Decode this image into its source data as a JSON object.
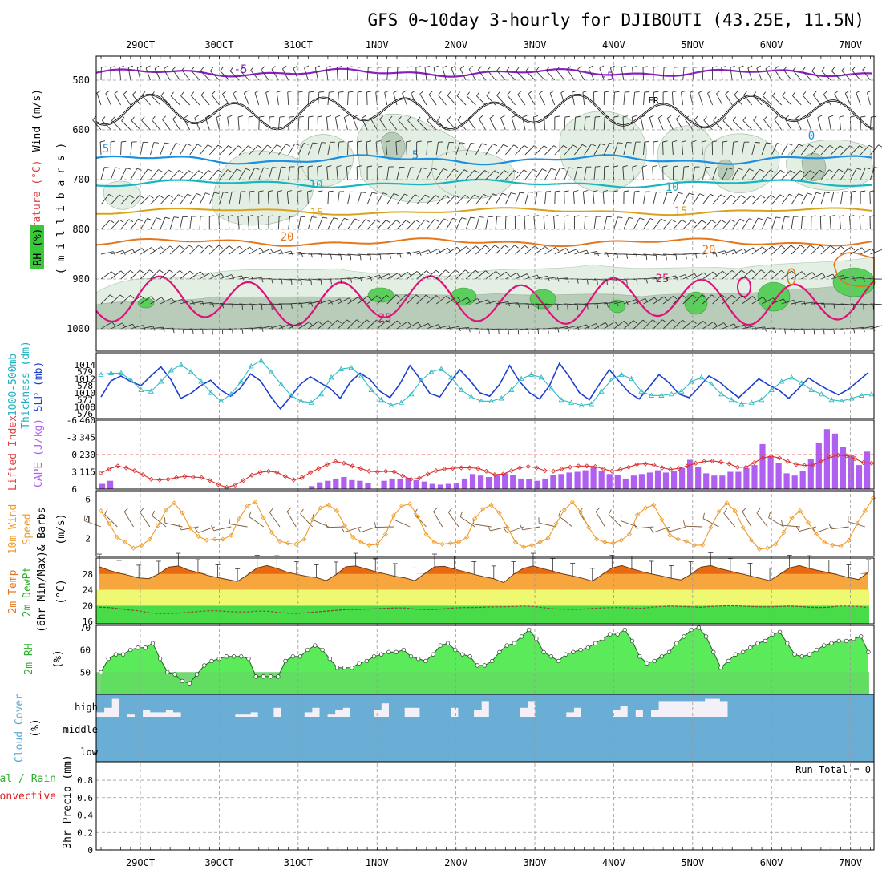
{
  "title": "GFS 0~10day 3-hourly for DJIBOUTI (43.25E, 11.5N)",
  "colors": {
    "grid": "#9a9a9a",
    "purple": "#8a1fc0",
    "black": "#000000",
    "blue_t": "#1c8fe0",
    "cyan_t": "#19b6c0",
    "yellow_t": "#d9a21c",
    "orange_t": "#e6761c",
    "magenta_t": "#e0107a",
    "rh_light": "#e3efe3",
    "rh_mid": "#b9cbb9",
    "rh_green": "#5bcf5b",
    "slp": "#1c3fd0",
    "thick": "#33bcc6",
    "cape": "#b060f0",
    "li": "#d83030",
    "wind10": "#f09a28",
    "barb": "#7a5a3a",
    "temp": "#e86a10",
    "temp_fill2": "#f6a63c",
    "temp_yel": "#eef870",
    "dew": "#48dc48",
    "rh2m": "#3de63d",
    "rh2m_low": "#78d878",
    "cloud": "#6aaed6",
    "cloud_bg": "#f4f0f8"
  },
  "panels": {
    "upper": {
      "ylabel_wind": "Wind (m/s)",
      "ylabel_temp": "Temperature (°C)",
      "ylabel_rh": "RH (%)",
      "ylabel_mb": "( m i l l i b a r s )",
      "pressure_ticks": [
        "500",
        "600",
        "700",
        "800",
        "900",
        "1000"
      ],
      "fr_label": "FR"
    },
    "slp": {
      "ylabel1": "1000-500mb",
      "ylabel2": "Thickness (dm)",
      "ylabel3": "SLP (mb)"
    },
    "cape": {
      "ylabel1": "Lifted Index",
      "ylabel2": "CAPE (J/kg)"
    },
    "wind": {
      "ylabel1": "10m Wind",
      "ylabel2": "Speed",
      "ylabel3": "& Barbs",
      "ylabel4": "(m/s)"
    },
    "temp": {
      "ylabel1": "2m Temp",
      "ylabel2": "2m DewPt",
      "ylabel3": "(6hr Min/Max)",
      "ylabel4": "(°C)"
    },
    "rh": {
      "ylabel1": "2m RH",
      "ylabel2": "(%)"
    },
    "cloud": {
      "ylabel1": "Cloud Cover",
      "ylabel2": "(%)",
      "levels": [
        "high",
        "middle",
        "low"
      ]
    },
    "precip": {
      "ylabel1": "Total / Rain",
      "ylabel2": "Convective",
      "ylabel3": "3hr Precip (mm)",
      "run_total": "Run Total = 0"
    }
  },
  "chart_data": {
    "type": "meteogram",
    "x_dates": [
      "29OCT",
      "30OCT",
      "31OCT",
      "1NOV",
      "2NOV",
      "3NOV",
      "4NOV",
      "5NOV",
      "6NOV",
      "7NOV"
    ],
    "x_range_days": [
      0.0,
      9.75
    ],
    "contours": [
      {
        "label": "-5",
        "value": -5,
        "color": "purple",
        "pressure_mean": 482
      },
      {
        "label": "FR",
        "value": 0,
        "color": "black",
        "pressure_mean": 570
      },
      {
        "label": "0",
        "value": 0,
        "color": "blue_t",
        "pressure_mean": 655
      },
      {
        "label": "5",
        "value": 5,
        "color": "blue_t",
        "pressure_mean": 660
      },
      {
        "label": "10",
        "value": 10,
        "color": "cyan_t",
        "pressure_mean": 706
      },
      {
        "label": "15",
        "value": 15,
        "color": "yellow_t",
        "pressure_mean": 762
      },
      {
        "label": "20",
        "value": 20,
        "color": "orange_t",
        "pressure_mean": 822
      },
      {
        "label": "25",
        "value": 25,
        "color": "magenta_t",
        "pressure_mean": 930
      }
    ],
    "slp": {
      "ylabel_left_ticks": [
        576,
        577,
        578,
        579
      ],
      "ylabel_right_ticks": [
        1008,
        1010,
        1012,
        1014
      ],
      "slp_mb": [
        1009.4,
        1011.7,
        1012.4,
        1011.6,
        1011.0,
        1012.4,
        1013.7,
        1011.9,
        1009.2,
        1009.9,
        1011.0,
        1011.8,
        1010.4,
        1009.5,
        1010.7,
        1012.7,
        1011.7,
        1009.5,
        1007.7,
        1009.4,
        1011.2,
        1012.3,
        1011.4,
        1010.6,
        1009.2,
        1011.5,
        1012.8,
        1011.9,
        1010.2,
        1009.3,
        1011.3,
        1013.9,
        1012.0,
        1009.9,
        1009.4,
        1011.5,
        1013.3,
        1011.8,
        1010.0,
        1009.5,
        1011.2,
        1013.9,
        1011.6,
        1010.0,
        1009.1,
        1011.0,
        1014.2,
        1012.3,
        1010.0,
        1009.0,
        1011.2,
        1013.3,
        1011.6,
        1010.0,
        1009.1,
        1010.8,
        1012.6,
        1011.4,
        1009.8,
        1009.3,
        1010.8,
        1012.4,
        1011.6,
        1010.4,
        1009.3,
        1010.6,
        1012.0,
        1011.1,
        1010.4,
        1009.2,
        1010.6,
        1012.1,
        1011.2,
        1010.4,
        1009.7,
        1010.5,
        1011.7,
        1012.9
      ],
      "thickness_dm": [
        578.8,
        578.9,
        578.9,
        578.4,
        577.7,
        577.6,
        578.3,
        579.1,
        579.5,
        579.0,
        578.3,
        577.5,
        576.9,
        577.4,
        578.3,
        579.4,
        579.8,
        579.0,
        578.1,
        577.3,
        576.9,
        576.8,
        577.4,
        578.6,
        579.2,
        579.3,
        578.7,
        577.7,
        577.0,
        576.6,
        576.8,
        577.4,
        578.4,
        579.0,
        579.2,
        578.6,
        577.7,
        577.2,
        576.9,
        576.9,
        577.1,
        577.7,
        578.5,
        578.8,
        578.6,
        577.8,
        577.0,
        576.8,
        576.6,
        576.7,
        577.6,
        578.4,
        578.8,
        578.5,
        577.6,
        577.3,
        577.3,
        577.4,
        577.6,
        578.3,
        578.6,
        578.1,
        577.4,
        577.0,
        576.7,
        576.8,
        577.0,
        577.7,
        578.3,
        578.6,
        578.2,
        577.7,
        577.4,
        577.0,
        576.9,
        577.1,
        577.3,
        577.4
      ]
    },
    "cape": {
      "cape_ticks": [
        115,
        230,
        345,
        460
      ],
      "li_ticks": [
        -6,
        -3,
        0,
        3,
        6
      ],
      "cape_jkg": [
        35,
        55,
        0,
        0,
        0,
        0,
        0,
        0,
        0,
        0,
        0,
        0,
        0,
        0,
        0,
        0,
        0,
        0,
        0,
        0,
        0,
        0,
        0,
        0,
        0,
        0,
        20,
        45,
        55,
        70,
        80,
        60,
        55,
        40,
        0,
        55,
        70,
        70,
        75,
        60,
        50,
        35,
        30,
        35,
        40,
        70,
        100,
        90,
        80,
        100,
        105,
        95,
        70,
        65,
        55,
        70,
        95,
        100,
        110,
        115,
        125,
        145,
        120,
        100,
        95,
        70,
        90,
        100,
        110,
        125,
        110,
        120,
        140,
        195,
        150,
        105,
        90,
        90,
        115,
        115,
        140,
        160,
        300,
        220,
        175,
        105,
        90,
        120,
        200,
        310,
        400,
        370,
        280,
        230,
        160,
        250
      ],
      "li": [
        3.2,
        2.5,
        2.0,
        2.3,
        2.8,
        3.5,
        4.3,
        4.4,
        4.3,
        4.0,
        3.8,
        3.9,
        4.0,
        4.5,
        5.2,
        5.7,
        5.3,
        4.5,
        3.6,
        3.1,
        2.9,
        3.1,
        3.8,
        4.4,
        4.0,
        3.1,
        2.4,
        1.7,
        1.2,
        1.5,
        2.0,
        2.4,
        2.9,
        3.0,
        2.9,
        3.0,
        3.7,
        4.3,
        4.1,
        3.4,
        2.8,
        2.5,
        2.4,
        2.3,
        2.3,
        2.4,
        2.9,
        3.5,
        3.4,
        2.8,
        2.3,
        2.1,
        2.3,
        2.8,
        2.9,
        2.5,
        2.2,
        2.0,
        2.0,
        2.1,
        2.5,
        2.9,
        2.6,
        2.2,
        1.7,
        1.6,
        1.8,
        2.3,
        2.6,
        2.4,
        2.0,
        1.5,
        1.2,
        1.1,
        1.3,
        1.6,
        2.2,
        2.2,
        1.4,
        0.6,
        0.3,
        0.6,
        1.2,
        1.7,
        1.9,
        1.8,
        1.2,
        0.5,
        0.1,
        0.2,
        0.7,
        1.4,
        1.5
      ]
    },
    "wind10m": {
      "yticks": [
        2,
        4,
        6
      ],
      "speed_ms": [
        4.8,
        3.5,
        2.1,
        1.6,
        1.0,
        1.3,
        1.9,
        3.3,
        4.9,
        5.6,
        4.6,
        3.0,
        2.2,
        1.8,
        1.9,
        1.9,
        2.3,
        4.0,
        5.3,
        5.7,
        4.1,
        2.6,
        1.7,
        1.5,
        1.4,
        1.9,
        3.9,
        5.1,
        5.4,
        4.8,
        3.3,
        2.1,
        1.6,
        1.3,
        1.4,
        2.4,
        4.3,
        5.3,
        5.5,
        4.2,
        2.4,
        1.6,
        1.4,
        1.5,
        1.6,
        2.1,
        4.0,
        5.0,
        5.4,
        4.6,
        3.1,
        1.6,
        1.1,
        1.3,
        1.6,
        2.0,
        3.5,
        4.9,
        5.7,
        4.7,
        3.1,
        1.9,
        1.6,
        1.5,
        1.8,
        2.4,
        4.4,
        5.1,
        5.4,
        3.9,
        2.3,
        1.9,
        1.7,
        1.3,
        1.3,
        3.1,
        4.7,
        5.6,
        4.8,
        3.1,
        1.8,
        0.9,
        1.0,
        1.4,
        2.6,
        4.1,
        4.8,
        3.6,
        2.4,
        1.6,
        1.3,
        1.2,
        1.8,
        3.5,
        4.8,
        6.1
      ]
    },
    "temp2m": {
      "yticks": [
        16,
        20,
        24,
        28
      ],
      "temp_c": [
        29.8,
        28.9,
        28.2,
        27.6,
        27.0,
        26.8,
        28.0,
        29.7,
        30.0,
        29.0,
        28.4,
        27.6,
        27.1,
        26.6,
        26.1,
        27.7,
        29.5,
        30.1,
        29.4,
        28.5,
        27.9,
        27.4,
        27.1,
        26.3,
        27.8,
        29.8,
        30.0,
        29.3,
        28.6,
        28.0,
        27.4,
        27.0,
        26.3,
        28.1,
        29.8,
        29.9,
        29.2,
        28.6,
        27.9,
        27.3,
        26.8,
        25.8,
        27.9,
        29.4,
        30.0,
        29.3,
        28.7,
        28.0,
        27.5,
        26.9,
        26.2,
        27.8,
        29.5,
        30.1,
        29.3,
        28.6,
        28.0,
        27.5,
        26.9,
        26.5,
        27.9,
        29.7,
        30.1,
        29.3,
        28.7,
        28.1,
        27.5,
        26.9,
        26.3,
        27.9,
        29.5,
        30.1,
        29.4,
        28.8,
        28.3,
        27.7,
        27.1,
        26.6,
        28.4
      ],
      "dew_c": [
        19.6,
        19.5,
        19.2,
        18.9,
        18.7,
        18.2,
        18.0,
        18.0,
        18.1,
        18.3,
        18.5,
        18.7,
        18.7,
        18.5,
        18.4,
        18.4,
        18.6,
        18.6,
        18.3,
        18.1,
        18.0,
        18.2,
        18.4,
        18.6,
        18.8,
        19.0,
        19.0,
        19.1,
        19.2,
        19.3,
        19.4,
        19.4,
        19.1,
        19.0,
        19.0,
        19.2,
        19.4,
        19.5,
        19.5,
        19.6,
        19.7,
        19.7,
        19.8,
        19.9,
        19.8,
        19.5,
        19.2,
        19.1,
        19.0,
        19.1,
        19.3,
        19.4,
        19.5,
        19.5,
        19.4,
        19.3,
        19.6,
        19.8,
        19.9,
        19.8,
        19.7,
        19.6,
        19.8,
        19.9,
        20.0,
        19.9,
        19.8,
        19.7,
        19.7,
        19.8,
        19.9,
        19.8,
        19.6,
        19.5,
        19.6,
        19.9,
        19.9,
        19.8,
        19.5
      ]
    },
    "rh2m": {
      "yticks": [
        50,
        60,
        70
      ],
      "rh_pct": [
        50,
        56,
        58,
        58,
        60,
        61,
        61,
        63,
        56,
        50,
        49,
        46,
        45,
        49,
        53,
        55,
        56,
        57,
        57,
        57,
        56,
        48,
        48,
        48,
        48,
        55,
        57,
        57,
        60,
        62,
        60,
        56,
        52,
        52,
        52,
        54,
        55,
        57,
        58,
        59,
        59,
        60,
        57,
        56,
        55,
        58,
        62,
        63,
        60,
        58,
        57,
        53,
        53,
        55,
        59,
        62,
        63,
        66,
        69,
        65,
        59,
        57,
        55,
        58,
        59,
        60,
        61,
        63,
        65,
        67,
        67,
        69,
        64,
        57,
        54,
        55,
        57,
        59,
        63,
        66,
        69,
        70,
        66,
        59,
        52,
        55,
        58,
        59,
        61,
        63,
        64,
        67,
        68,
        63,
        58,
        57,
        58,
        60,
        62,
        63,
        64,
        64,
        65,
        66,
        59
      ]
    },
    "cloud": {
      "levels_order": [
        "high",
        "middle",
        "low"
      ],
      "high_pct": [
        80,
        60,
        20,
        100,
        90,
        100,
        70,
        80,
        80,
        70,
        80,
        100,
        100,
        100,
        100,
        100,
        100,
        100,
        90,
        90,
        80,
        100,
        100,
        60,
        100,
        100,
        100,
        80,
        60,
        100,
        90,
        70,
        60,
        100,
        100,
        100,
        70,
        40,
        100,
        100,
        60,
        60,
        100,
        100,
        100,
        100,
        60,
        100,
        100,
        70,
        30,
        100,
        100,
        100,
        100,
        60,
        30,
        100,
        100,
        100,
        100,
        80,
        60,
        100,
        100,
        100,
        100,
        70,
        50,
        100,
        70,
        100,
        70,
        30,
        30,
        30,
        30,
        30,
        30,
        20,
        20,
        30,
        100,
        100,
        100,
        100,
        100,
        100,
        100,
        100,
        100,
        100,
        100,
        100,
        100,
        100,
        100,
        100,
        100,
        100,
        100
      ],
      "middle_pct": 100,
      "low_pct": 100
    },
    "precip": {
      "yticks": [
        0,
        0.2,
        0.4,
        0.6,
        0.8
      ],
      "total_mm": 0,
      "convective_mm": 0
    }
  }
}
